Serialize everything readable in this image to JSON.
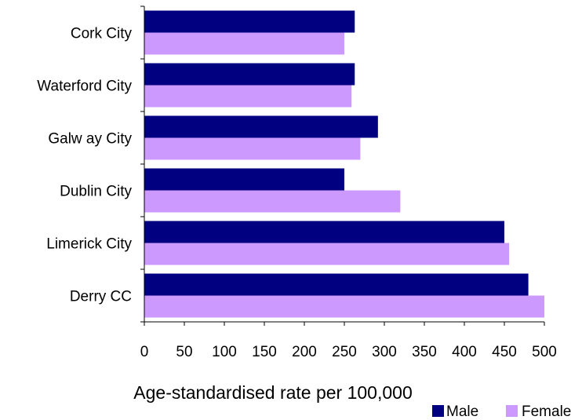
{
  "chart_data": {
    "type": "bar",
    "orientation": "horizontal",
    "categories": [
      "Cork City",
      "Waterford City",
      "Galw ay City",
      "Dublin City",
      "Limerick City",
      "Derry CC"
    ],
    "series": [
      {
        "name": "Male",
        "color": "#000080",
        "values": [
          263,
          263,
          292,
          250,
          450,
          480
        ]
      },
      {
        "name": "Female",
        "color": "#cc99ff",
        "values": [
          250,
          259,
          270,
          320,
          456,
          500
        ]
      }
    ],
    "xlabel": "Age-standardised rate per 100,000",
    "xlim": [
      0,
      500
    ],
    "xticks": [
      "0",
      "50",
      "100",
      "150",
      "200",
      "250",
      "300",
      "350",
      "400",
      "450",
      "500"
    ],
    "grid": false,
    "legend_position": "bottom-right"
  }
}
